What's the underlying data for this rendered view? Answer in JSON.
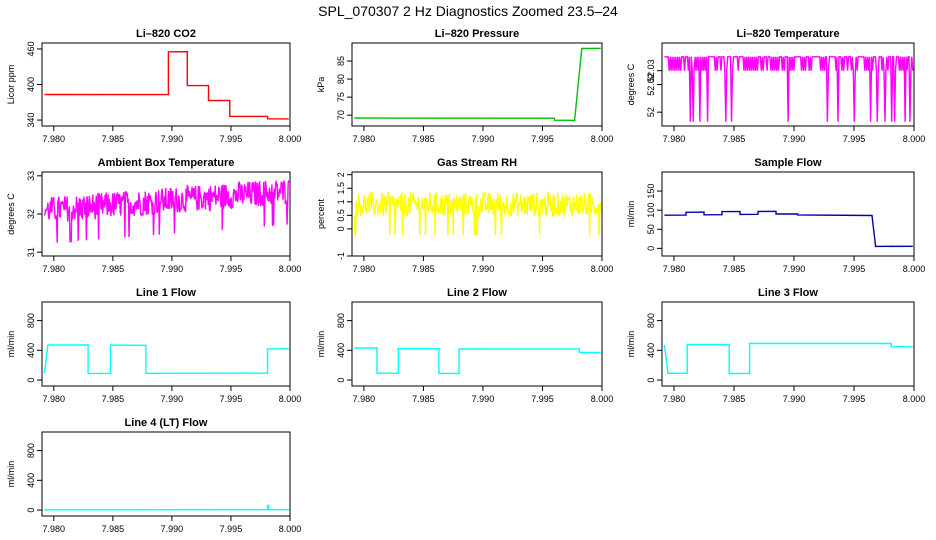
{
  "page": {
    "title": "SPL_070307  2 Hz Diagnostics Zoomed 23.5–24"
  },
  "chart_data": [
    {
      "type": "line",
      "title": "Li–820 CO2",
      "ylabel": "Licor ppm",
      "color": "#ff0000",
      "xlim": [
        7.979,
        8.0
      ],
      "ylim": [
        330,
        470
      ],
      "yticks": [
        340,
        400,
        460
      ],
      "xticks": [
        7.98,
        7.985,
        7.99,
        7.995,
        8.0
      ],
      "x": [
        7.9792,
        7.9897,
        7.9897,
        7.9913,
        7.9913,
        7.9931,
        7.9931,
        7.9949,
        7.9949,
        7.9981,
        7.9981,
        7.9999
      ],
      "values": [
        383,
        383,
        455,
        455,
        398,
        398,
        373,
        373,
        346,
        346,
        342,
        342
      ]
    },
    {
      "type": "line",
      "title": "Li–820 Pressure",
      "ylabel": "kPa",
      "color": "#00c000",
      "xlim": [
        7.979,
        8.0
      ],
      "ylim": [
        67,
        90
      ],
      "yticks": [
        70,
        75,
        80,
        85
      ],
      "xticks": [
        7.98,
        7.985,
        7.99,
        7.995,
        8.0
      ],
      "x": [
        7.9792,
        7.996,
        7.996,
        7.9977,
        7.9983,
        7.9999
      ],
      "values": [
        69.2,
        69.2,
        68.6,
        68.6,
        88.5,
        88.5
      ]
    },
    {
      "type": "line",
      "title": "Li–820 Temperature",
      "ylabel": "degrees C",
      "color": "#ff00ff",
      "xlim": [
        7.979,
        8.0
      ],
      "ylim": [
        51.99,
        52.05
      ],
      "yticks": [
        52.0,
        52.02,
        52.03
      ],
      "xticks": [
        7.98,
        7.985,
        7.99,
        7.995,
        8.0
      ],
      "x": [
        7.9792,
        7.9999
      ],
      "values": [
        52.04,
        52.04
      ],
      "band": [
        52.03,
        52.04
      ]
    },
    {
      "type": "line",
      "title": "Ambient Box Temperature",
      "ylabel": "degrees C",
      "color": "#ff00ff",
      "xlim": [
        7.979,
        8.0
      ],
      "ylim": [
        30.9,
        33.1
      ],
      "yticks": [
        31.0,
        32.0,
        33.0
      ],
      "xticks": [
        7.98,
        7.985,
        7.99,
        7.995,
        8.0
      ],
      "x": [
        7.9792,
        7.9999
      ],
      "values": [
        32.1,
        32.6
      ],
      "noise": 0.35
    },
    {
      "type": "line",
      "title": "Gas Stream RH",
      "ylabel": "percent",
      "color": "#ffff00",
      "xlim": [
        7.979,
        8.0
      ],
      "ylim": [
        -1.0,
        2.1
      ],
      "yticks": [
        -1.0,
        0.0,
        0.5,
        1.0,
        1.5,
        2.0
      ],
      "xticks": [
        7.98,
        7.985,
        7.99,
        7.995,
        8.0
      ],
      "x": [
        7.9792,
        7.9999
      ],
      "values": [
        0.9,
        0.9
      ],
      "noise": 0.45
    },
    {
      "type": "line",
      "title": "Sample Flow",
      "ylabel": "ml/min",
      "color": "#0000aa",
      "xlim": [
        7.979,
        8.0
      ],
      "ylim": [
        -20,
        200
      ],
      "yticks": [
        0,
        50,
        100,
        150
      ],
      "xticks": [
        7.98,
        7.985,
        7.99,
        7.995,
        8.0
      ],
      "x": [
        7.9792,
        7.981,
        7.981,
        7.9825,
        7.9825,
        7.984,
        7.984,
        7.9855,
        7.9855,
        7.987,
        7.987,
        7.9885,
        7.9885,
        7.9903,
        7.9903,
        7.9965,
        7.9968,
        7.9999
      ],
      "values": [
        87,
        87,
        95,
        95,
        88,
        88,
        96,
        96,
        89,
        89,
        97,
        97,
        90,
        90,
        88,
        86,
        5,
        5
      ]
    },
    {
      "type": "line",
      "title": "Line 1 Flow",
      "ylabel": "ml/min",
      "color": "#00ffff",
      "xlim": [
        7.979,
        8.0
      ],
      "ylim": [
        -80,
        1050
      ],
      "yticks": [
        0,
        400,
        800
      ],
      "xticks": [
        7.98,
        7.985,
        7.99,
        7.995,
        8.0
      ],
      "x": [
        7.9792,
        7.9795,
        7.9829,
        7.9829,
        7.9848,
        7.9848,
        7.9878,
        7.9878,
        7.9981,
        7.9981,
        7.9999
      ],
      "values": [
        90,
        470,
        470,
        90,
        90,
        470,
        470,
        90,
        90,
        420,
        420
      ]
    },
    {
      "type": "line",
      "title": "Line 2 Flow",
      "ylabel": "ml/min",
      "color": "#00ffff",
      "xlim": [
        7.979,
        8.0
      ],
      "ylim": [
        -80,
        1050
      ],
      "yticks": [
        0,
        400,
        800
      ],
      "xticks": [
        7.98,
        7.985,
        7.99,
        7.995,
        8.0
      ],
      "x": [
        7.9792,
        7.9811,
        7.9811,
        7.9829,
        7.9829,
        7.9863,
        7.9863,
        7.988,
        7.988,
        7.9981,
        7.9981,
        7.9999
      ],
      "values": [
        430,
        430,
        90,
        90,
        420,
        420,
        90,
        90,
        420,
        420,
        370,
        370
      ]
    },
    {
      "type": "line",
      "title": "Line 3 Flow",
      "ylabel": "ml/min",
      "color": "#00ffff",
      "xlim": [
        7.979,
        8.0
      ],
      "ylim": [
        -80,
        1050
      ],
      "yticks": [
        0,
        400,
        800
      ],
      "xticks": [
        7.98,
        7.985,
        7.99,
        7.995,
        8.0
      ],
      "x": [
        7.9792,
        7.9795,
        7.9811,
        7.9811,
        7.9846,
        7.9846,
        7.9863,
        7.9863,
        7.9981,
        7.9981,
        7.9999
      ],
      "values": [
        470,
        90,
        90,
        480,
        480,
        90,
        90,
        490,
        490,
        450,
        450
      ]
    },
    {
      "type": "line",
      "title": "Line 4 (LT) Flow",
      "ylabel": "ml/min",
      "color": "#00ffff",
      "xlim": [
        7.979,
        8.0
      ],
      "ylim": [
        -80,
        1050
      ],
      "yticks": [
        0,
        400,
        800
      ],
      "xticks": [
        7.98,
        7.985,
        7.99,
        7.995,
        8.0
      ],
      "x": [
        7.9792,
        7.9981,
        7.9981,
        7.9982,
        7.9982,
        7.9999
      ],
      "values": [
        5,
        5,
        60,
        60,
        5,
        5
      ]
    }
  ]
}
